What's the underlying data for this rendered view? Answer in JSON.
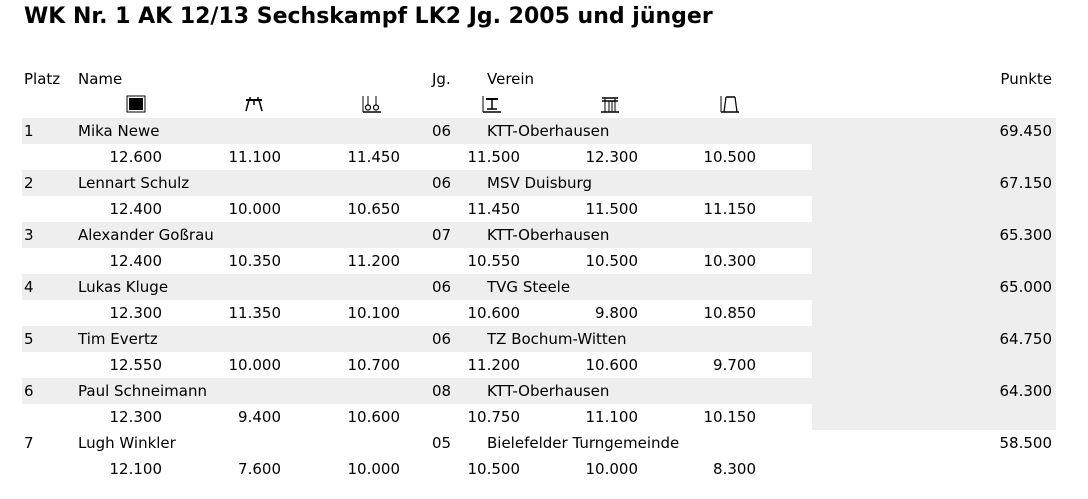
{
  "title": "WK Nr. 1 AK 12/13 Sechskampf LK2 Jg. 2005 und jünger",
  "header": {
    "platz": "Platz",
    "name": "Name",
    "jg": "Jg.",
    "verein": "Verein",
    "punkte": "Punkte"
  },
  "apparatus_icons": [
    "floor-icon",
    "pommel-horse-icon",
    "rings-icon",
    "vault-icon",
    "parallel-bars-icon",
    "high-bar-icon"
  ],
  "rows": [
    {
      "platz": "1",
      "name": "Mika Newe",
      "jg": "06",
      "verein": "KTT-Oberhausen",
      "punkte": "69.450",
      "scores": [
        "12.600",
        "11.100",
        "11.450",
        "11.500",
        "12.300",
        "10.500"
      ]
    },
    {
      "platz": "2",
      "name": "Lennart Schulz",
      "jg": "06",
      "verein": "MSV Duisburg",
      "punkte": "67.150",
      "scores": [
        "12.400",
        "10.000",
        "10.650",
        "11.450",
        "11.500",
        "11.150"
      ]
    },
    {
      "platz": "3",
      "name": "Alexander Goßrau",
      "jg": "07",
      "verein": "KTT-Oberhausen",
      "punkte": "65.300",
      "scores": [
        "12.400",
        "10.350",
        "11.200",
        "10.550",
        "10.500",
        "10.300"
      ]
    },
    {
      "platz": "4",
      "name": "Lukas Kluge",
      "jg": "06",
      "verein": "TVG Steele",
      "punkte": "65.000",
      "scores": [
        "12.300",
        "11.350",
        "10.100",
        "10.600",
        "9.800",
        "10.850"
      ]
    },
    {
      "platz": "5",
      "name": "Tim Evertz",
      "jg": "06",
      "verein": "TZ Bochum-Witten",
      "punkte": "64.750",
      "scores": [
        "12.550",
        "10.000",
        "10.700",
        "11.200",
        "10.600",
        "9.700"
      ]
    },
    {
      "platz": "6",
      "name": "Paul Schneimann",
      "jg": "08",
      "verein": "KTT-Oberhausen",
      "punkte": "64.300",
      "scores": [
        "12.300",
        "9.400",
        "10.600",
        "10.750",
        "11.100",
        "10.150"
      ]
    },
    {
      "platz": "7",
      "name": "Lugh Winkler",
      "jg": "05",
      "verein": "Bielefelder Turngemeinde",
      "punkte": "58.500",
      "scores": [
        "12.100",
        "7.600",
        "10.000",
        "10.500",
        "10.000",
        "8.300"
      ]
    }
  ]
}
